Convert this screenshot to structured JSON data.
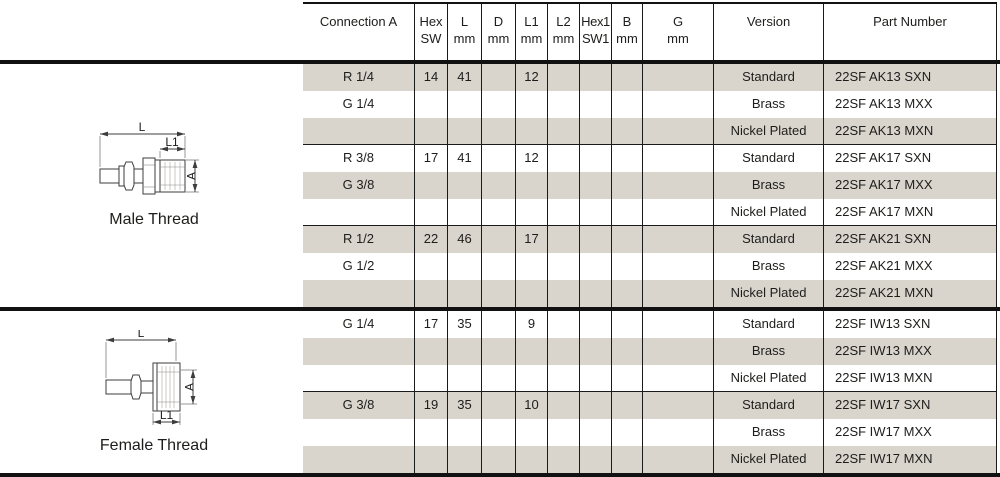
{
  "colors": {
    "row_shade": "#d9d5cd",
    "grid_line": "#1a1a1a",
    "thick_line": "#111111",
    "text": "#1d1d1b",
    "drawing_line": "#3c3c3c"
  },
  "table": {
    "columns": [
      {
        "key": "connection_a",
        "line1": "Connection A",
        "line2": ""
      },
      {
        "key": "hex_sw",
        "line1": "Hex",
        "line2": "SW"
      },
      {
        "key": "l_mm",
        "line1": "L",
        "line2": "mm"
      },
      {
        "key": "d_mm",
        "line1": "D",
        "line2": "mm"
      },
      {
        "key": "l1_mm",
        "line1": "L1",
        "line2": "mm"
      },
      {
        "key": "l2_mm",
        "line1": "L2",
        "line2": "mm"
      },
      {
        "key": "hex1_sw1",
        "line1": "Hex1",
        "line2": "SW1"
      },
      {
        "key": "b_mm",
        "line1": "B",
        "line2": "mm"
      },
      {
        "key": "g_mm",
        "line1": "G",
        "line2": "mm"
      },
      {
        "key": "version",
        "line1": "Version",
        "line2": ""
      },
      {
        "key": "part_number",
        "line1": "Part Number",
        "line2": ""
      }
    ],
    "sections": [
      {
        "label": "Male Thread",
        "rows": [
          {
            "cells": [
              "R 1/4",
              "14",
              "41",
              "",
              "12",
              "",
              "",
              "",
              "",
              "Standard",
              "22SF AK13 SXN"
            ],
            "shaded": true,
            "separator_after": false
          },
          {
            "cells": [
              "G 1/4",
              "",
              "",
              "",
              "",
              "",
              "",
              "",
              "",
              "Brass",
              "22SF AK13 MXX"
            ],
            "shaded": false,
            "separator_after": false
          },
          {
            "cells": [
              "",
              "",
              "",
              "",
              "",
              "",
              "",
              "",
              "",
              "Nickel Plated",
              "22SF AK13 MXN"
            ],
            "shaded": true,
            "separator_after": true
          },
          {
            "cells": [
              "R 3/8",
              "17",
              "41",
              "",
              "12",
              "",
              "",
              "",
              "",
              "Standard",
              "22SF AK17 SXN"
            ],
            "shaded": false,
            "separator_after": false
          },
          {
            "cells": [
              "G 3/8",
              "",
              "",
              "",
              "",
              "",
              "",
              "",
              "",
              "Brass",
              "22SF AK17 MXX"
            ],
            "shaded": true,
            "separator_after": false
          },
          {
            "cells": [
              "",
              "",
              "",
              "",
              "",
              "",
              "",
              "",
              "",
              "Nickel Plated",
              "22SF AK17 MXN"
            ],
            "shaded": false,
            "separator_after": true
          },
          {
            "cells": [
              "R 1/2",
              "22",
              "46",
              "",
              "17",
              "",
              "",
              "",
              "",
              "Standard",
              "22SF AK21 SXN"
            ],
            "shaded": true,
            "separator_after": false
          },
          {
            "cells": [
              "G 1/2",
              "",
              "",
              "",
              "",
              "",
              "",
              "",
              "",
              "Brass",
              "22SF AK21 MXX"
            ],
            "shaded": false,
            "separator_after": false
          },
          {
            "cells": [
              "",
              "",
              "",
              "",
              "",
              "",
              "",
              "",
              "",
              "Nickel Plated",
              "22SF AK21 MXN"
            ],
            "shaded": true,
            "separator_after": false
          }
        ]
      },
      {
        "label": "Female Thread",
        "rows": [
          {
            "cells": [
              "G 1/4",
              "17",
              "35",
              "",
              "9",
              "",
              "",
              "",
              "",
              "Standard",
              "22SF IW13 SXN"
            ],
            "shaded": false,
            "separator_after": false
          },
          {
            "cells": [
              "",
              "",
              "",
              "",
              "",
              "",
              "",
              "",
              "",
              "Brass",
              "22SF IW13 MXX"
            ],
            "shaded": true,
            "separator_after": false
          },
          {
            "cells": [
              "",
              "",
              "",
              "",
              "",
              "",
              "",
              "",
              "",
              "Nickel Plated",
              "22SF IW13 MXN"
            ],
            "shaded": false,
            "separator_after": true
          },
          {
            "cells": [
              "G 3/8",
              "19",
              "35",
              "",
              "10",
              "",
              "",
              "",
              "",
              "Standard",
              "22SF IW17 SXN"
            ],
            "shaded": true,
            "separator_after": false
          },
          {
            "cells": [
              "",
              "",
              "",
              "",
              "",
              "",
              "",
              "",
              "",
              "Brass",
              "22SF IW17 MXX"
            ],
            "shaded": false,
            "separator_after": false
          },
          {
            "cells": [
              "",
              "",
              "",
              "",
              "",
              "",
              "",
              "",
              "",
              "Nickel Plated",
              "22SF IW17 MXN"
            ],
            "shaded": true,
            "separator_after": false
          }
        ]
      }
    ]
  },
  "diagrams": {
    "male": {
      "caption": "Male Thread",
      "dim_l": "L",
      "dim_l1": "L1",
      "dim_a": "A"
    },
    "female": {
      "caption": "Female Thread",
      "dim_l": "L",
      "dim_l1": "L1",
      "dim_a": "A"
    }
  }
}
